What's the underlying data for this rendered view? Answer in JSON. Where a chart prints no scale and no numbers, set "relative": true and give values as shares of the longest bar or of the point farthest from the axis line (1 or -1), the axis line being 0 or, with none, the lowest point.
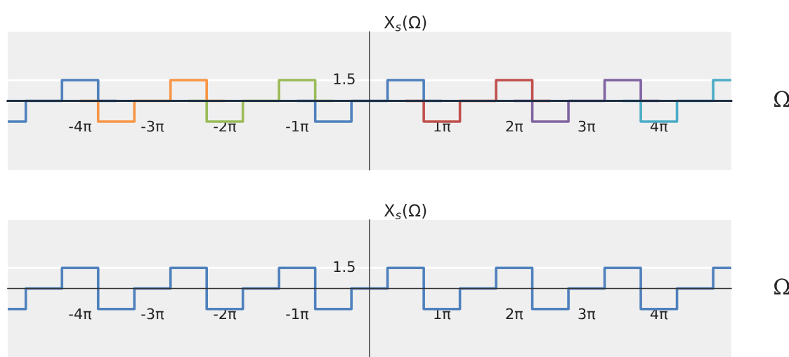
{
  "chart_data": [
    {
      "type": "step",
      "xlabel": "Ω",
      "ylabel": "X$_{s}$(Ω)",
      "relative": true,
      "ref_lines": [
        {
          "axis": "y",
          "value": 1,
          "color": "#ffffff"
        }
      ],
      "annotations": [
        "1.5"
      ],
      "xlim": [
        -15.708,
        15.708
      ],
      "xticks": [
        {
          "value": -15.708,
          "label": null
        },
        {
          "value": -12.566,
          "label": "-4π"
        },
        {
          "value": -9.425,
          "label": "-3π"
        },
        {
          "value": -6.283,
          "label": "-2π"
        },
        {
          "value": -3.142,
          "label": "-1π"
        },
        {
          "value": 3.142,
          "label": "1π"
        },
        {
          "value": 6.283,
          "label": "2π"
        },
        {
          "value": 9.425,
          "label": "3π"
        },
        {
          "value": 12.566,
          "label": "4π"
        },
        {
          "value": 15.708,
          "label": null
        }
      ],
      "series": [
        {
          "color": "#4f81bd",
          "x": [
            -15.708,
            -14.923,
            -13.352,
            -11.781,
            -10.996
          ],
          "values": [
            -1,
            0,
            1,
            0,
            0
          ]
        },
        {
          "color": "#f79646",
          "x": [
            -12.566,
            -11.781,
            -10.21,
            -8.639,
            -7.069,
            -6.283
          ],
          "values": [
            0,
            -1,
            0,
            1,
            0,
            0
          ]
        },
        {
          "color": "#9bbb59",
          "x": [
            -7.854,
            -7.069,
            -5.498,
            -3.927,
            -2.356,
            -1.571
          ],
          "values": [
            0,
            -1,
            0,
            1,
            0,
            0
          ]
        },
        {
          "color": "#4f81bd",
          "x": [
            -3.142,
            -2.356,
            -0.785,
            0.785,
            2.356,
            3.142
          ],
          "values": [
            0,
            -1,
            0,
            1,
            0,
            0
          ]
        },
        {
          "color": "#c0504d",
          "x": [
            1.571,
            2.356,
            3.927,
            5.498,
            7.069,
            7.854
          ],
          "values": [
            0,
            -1,
            0,
            1,
            0,
            0
          ]
        },
        {
          "color": "#8064a2",
          "x": [
            6.283,
            7.069,
            8.639,
            10.21,
            11.781,
            12.566
          ],
          "values": [
            0,
            -1,
            0,
            1,
            0,
            0
          ]
        },
        {
          "color": "#4bacc6",
          "x": [
            10.996,
            11.781,
            13.352,
            14.923,
            15.708
          ],
          "values": [
            0,
            -1,
            0,
            1,
            1
          ]
        }
      ]
    },
    {
      "type": "step",
      "xlabel": "Ω",
      "ylabel": "X$_{s}$(Ω)",
      "relative": true,
      "ref_lines": [
        {
          "axis": "y",
          "value": 1,
          "color": "#ffffff"
        }
      ],
      "annotations": [
        "1.5"
      ],
      "xlim": [
        -15.708,
        15.708
      ],
      "xticks": [
        {
          "value": -15.708,
          "label": null
        },
        {
          "value": -12.566,
          "label": "-4π"
        },
        {
          "value": -9.425,
          "label": "-3π"
        },
        {
          "value": -6.283,
          "label": "-2π"
        },
        {
          "value": -3.142,
          "label": "-1π"
        },
        {
          "value": 3.142,
          "label": "1π"
        },
        {
          "value": 6.283,
          "label": "2π"
        },
        {
          "value": 9.425,
          "label": "3π"
        },
        {
          "value": 12.566,
          "label": "4π"
        },
        {
          "value": 15.708,
          "label": null
        }
      ],
      "series": [
        {
          "color": "#4f81bd",
          "x": [
            -15.708,
            -14.923,
            -13.352,
            -11.781,
            -10.21,
            -8.639,
            -7.069,
            -5.498,
            -3.927,
            -2.356,
            -0.785,
            0.785,
            2.356,
            3.927,
            5.498,
            7.069,
            8.639,
            10.21,
            11.781,
            13.352,
            14.923,
            15.708
          ],
          "values": [
            -1,
            0,
            1,
            -1,
            0,
            1,
            -1,
            0,
            1,
            -1,
            0,
            1,
            -1,
            0,
            1,
            -1,
            0,
            1,
            -1,
            0,
            1,
            1
          ]
        }
      ]
    }
  ]
}
